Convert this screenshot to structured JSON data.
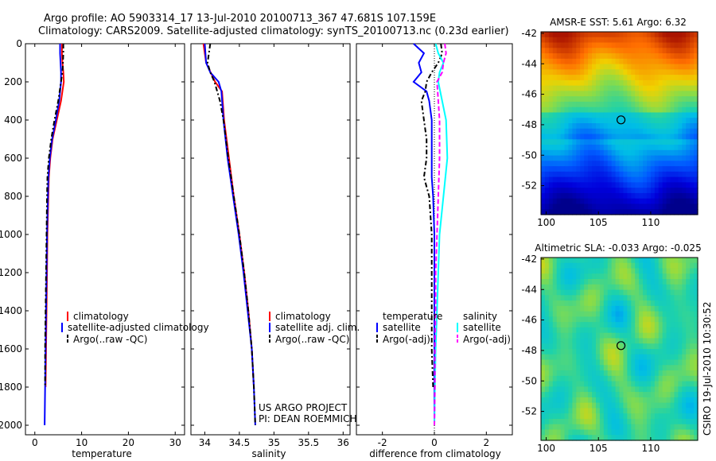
{
  "header": {
    "line1": "Argo profile: AO 5903314_17 13-Jul-2010 20100713_367 47.681S 107.159E",
    "line2": "Climatology: CARS2009. Satellite-adjusted climatology: synTS_20100713.nc (0.23d earlier)"
  },
  "credit": {
    "project": "US ARGO PROJECT",
    "pi": "PI: DEAN ROEMMICH",
    "csiro": "CSIRO 19-Jul-2010 10:30:52"
  },
  "colors": {
    "climatology": "#ff0000",
    "satellite": "#0000ff",
    "argo": "#000000",
    "salinity_satellite": "#00ffff",
    "salinity_argo": "#ff00ff"
  },
  "chart_data": [
    {
      "id": "temperature",
      "type": "line",
      "xlabel": "temperature",
      "ylabel": "",
      "xlim": [
        -2,
        32
      ],
      "ylim": [
        2050,
        0
      ],
      "xticks": [
        0,
        10,
        20,
        30
      ],
      "yticks": [
        0,
        200,
        400,
        600,
        800,
        1000,
        1200,
        1400,
        1600,
        1800,
        2000
      ],
      "legend": [
        "climatology",
        "satellite-adjusted climatology",
        "Argo(..raw -QC)"
      ],
      "series": [
        {
          "name": "climatology",
          "color": "#ff0000",
          "dash": "",
          "depth": [
            0,
            50,
            100,
            150,
            200,
            300,
            400,
            500,
            600,
            700,
            800,
            1000,
            1200,
            1400,
            1600,
            1800
          ],
          "values": [
            5.8,
            5.8,
            5.9,
            6.1,
            6.2,
            5.6,
            4.7,
            3.8,
            3.3,
            3.0,
            2.9,
            2.7,
            2.6,
            2.5,
            2.4,
            2.3
          ]
        },
        {
          "name": "satellite-adjusted climatology",
          "color": "#0000ff",
          "dash": "",
          "depth": [
            0,
            50,
            100,
            150,
            200,
            300,
            400,
            500,
            600,
            700,
            800,
            1000,
            1200,
            1400,
            1600,
            1800,
            2000
          ],
          "values": [
            5.4,
            5.4,
            5.5,
            5.6,
            5.6,
            5.2,
            4.5,
            3.7,
            3.2,
            2.9,
            2.8,
            2.6,
            2.5,
            2.4,
            2.3,
            2.2,
            2.1
          ]
        },
        {
          "name": "Argo(..raw -QC)",
          "color": "#000000",
          "dash": "6,3,2,3",
          "depth": [
            0,
            50,
            100,
            150,
            200,
            300,
            400,
            500,
            600,
            700,
            800,
            1000,
            1200,
            1400,
            1600,
            1800
          ],
          "values": [
            6.1,
            6.1,
            6.0,
            5.9,
            5.6,
            5.0,
            4.2,
            3.5,
            3.0,
            2.7,
            2.6,
            2.5,
            2.4,
            2.3,
            2.2,
            2.2
          ]
        }
      ]
    },
    {
      "id": "salinity",
      "type": "line",
      "xlabel": "salinity",
      "ylabel": "",
      "xlim": [
        33.8,
        36.1
      ],
      "ylim": [
        2050,
        0
      ],
      "xticks": [
        34,
        34.5,
        35,
        35.5,
        36
      ],
      "legend": [
        "climatology",
        "satellite adj. clim.",
        "Argo(..raw -QC)"
      ],
      "series": [
        {
          "name": "climatology",
          "color": "#ff0000",
          "dash": "",
          "depth": [
            0,
            100,
            200,
            250,
            400,
            600,
            800,
            1000,
            1200,
            1400,
            1600,
            1800
          ],
          "values": [
            33.98,
            34.02,
            34.15,
            34.25,
            34.28,
            34.35,
            34.42,
            34.5,
            34.57,
            34.63,
            34.68,
            34.71
          ]
        },
        {
          "name": "satellite adj. clim.",
          "color": "#0000ff",
          "dash": "",
          "depth": [
            0,
            100,
            150,
            200,
            250,
            400,
            600,
            800,
            1000,
            1200,
            1400,
            1600,
            1800,
            2000
          ],
          "values": [
            34.0,
            34.02,
            34.08,
            34.2,
            34.24,
            34.27,
            34.33,
            34.41,
            34.49,
            34.56,
            34.62,
            34.68,
            34.71,
            34.73
          ]
        },
        {
          "name": "Argo(..raw -QC)",
          "color": "#000000",
          "dash": "6,3,2,3",
          "depth": [
            0,
            50,
            100,
            150,
            200,
            300,
            400,
            600,
            800,
            1000,
            1200,
            1400,
            1600,
            1800,
            2000
          ],
          "values": [
            34.08,
            34.06,
            34.04,
            34.08,
            34.14,
            34.22,
            34.27,
            34.34,
            34.42,
            34.5,
            34.57,
            34.63,
            34.68,
            34.71,
            34.73
          ]
        }
      ]
    },
    {
      "id": "difference",
      "type": "line",
      "xlabel": "difference from climatology",
      "ylabel": "",
      "xlim": [
        -3,
        3
      ],
      "ylim": [
        2050,
        0
      ],
      "xticks": [
        -2,
        0,
        2
      ],
      "legend_temperature_title": "temperature",
      "legend_salinity_title": "salinity",
      "legend": [
        "satellite",
        "Argo(-adj)",
        "satellite",
        "Argo(-adj)"
      ],
      "series": [
        {
          "name": "temperature satellite",
          "color": "#0000ff",
          "dash": "",
          "depth": [
            0,
            50,
            100,
            150,
            200,
            250,
            300,
            400,
            500,
            600,
            700,
            800,
            1000,
            1200,
            1400,
            1600,
            1800,
            2000
          ],
          "values": [
            -0.8,
            -0.4,
            -0.6,
            -0.5,
            -0.8,
            -0.3,
            -0.2,
            -0.1,
            -0.1,
            -0.1,
            -0.1,
            -0.05,
            0,
            0,
            0,
            0,
            0,
            0
          ]
        },
        {
          "name": "temperature Argo(-adj)",
          "color": "#000000",
          "dash": "6,3,2,3",
          "depth": [
            0,
            50,
            100,
            150,
            200,
            250,
            300,
            400,
            500,
            600,
            700,
            800,
            1000,
            1200,
            1400,
            1600,
            1800
          ],
          "values": [
            0.25,
            0.3,
            0.15,
            -0.1,
            -0.3,
            -0.35,
            -0.5,
            -0.4,
            -0.3,
            -0.3,
            -0.4,
            -0.2,
            -0.1,
            -0.1,
            -0.1,
            -0.1,
            -0.05
          ]
        },
        {
          "name": "salinity satellite",
          "color": "#00ffff",
          "dash": "",
          "depth": [
            0,
            50,
            100,
            150,
            200,
            300,
            400,
            600,
            800,
            1000,
            1200,
            1400,
            1600,
            1800,
            2000
          ],
          "values": [
            0.05,
            0.15,
            0.35,
            0.2,
            0.15,
            0.3,
            0.45,
            0.5,
            0.35,
            0.2,
            0.15,
            0.1,
            0.05,
            0.02,
            0
          ]
        },
        {
          "name": "salinity Argo(-adj)",
          "color": "#ff00ff",
          "dash": "6,3",
          "depth": [
            0,
            50,
            100,
            150,
            200,
            300,
            400,
            600,
            800,
            1000,
            1200,
            1400,
            1600,
            1800,
            2000
          ],
          "values": [
            0.4,
            0.45,
            0.35,
            0.3,
            0.1,
            0.15,
            0.2,
            0.2,
            0.15,
            0.1,
            0.05,
            0.05,
            0.02,
            0.02,
            0
          ]
        }
      ]
    },
    {
      "id": "sst-map",
      "type": "heatmap",
      "title": "AMSR-E SST: 5.61 Argo: 6.32",
      "xlim": [
        99.5,
        114.5
      ],
      "ylim": [
        -53.9,
        -41.9
      ],
      "xticks": [
        100,
        105,
        110
      ],
      "yticks": [
        -42,
        -44,
        -46,
        -48,
        -50,
        -52
      ],
      "marker": {
        "lon": 107.159,
        "lat": -47.681
      }
    },
    {
      "id": "sla-map",
      "type": "heatmap",
      "title": "Altimetric SLA: -0.033 Argo: -0.025",
      "xlim": [
        99.5,
        114.5
      ],
      "ylim": [
        -53.9,
        -41.9
      ],
      "xticks": [
        100,
        105,
        110
      ],
      "yticks": [
        -42,
        -44,
        -46,
        -48,
        -50,
        -52
      ],
      "marker": {
        "lon": 107.159,
        "lat": -47.681
      }
    }
  ]
}
